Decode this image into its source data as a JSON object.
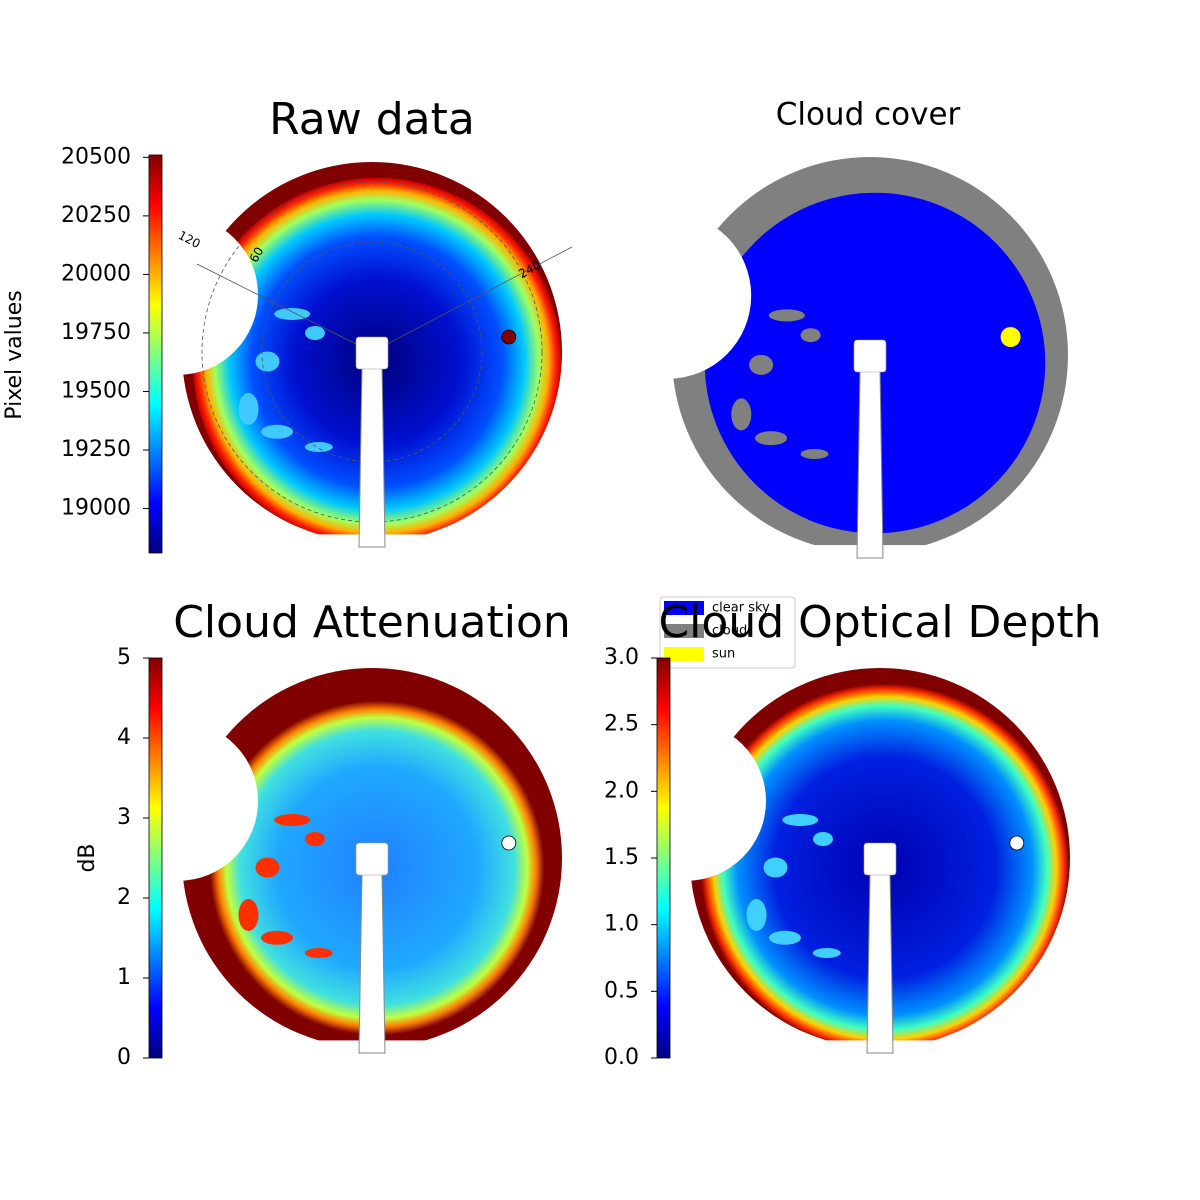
{
  "chart_data": [
    {
      "type": "image",
      "title": "Raw data",
      "colorbar": {
        "label": "Pixel values",
        "colormap": "jet",
        "ylim": [
          18810,
          20510
        ],
        "yticks": [
          19000,
          19250,
          19500,
          19750,
          20000,
          20250,
          20500
        ]
      },
      "annotations": [
        "120",
        "60",
        "240"
      ]
    },
    {
      "type": "image",
      "title": "Cloud cover",
      "legend": {
        "position": "upper left",
        "entries": [
          {
            "name": "clear sky",
            "color": "#0000ff"
          },
          {
            "name": "cloud",
            "color": "#808080"
          },
          {
            "name": "sun",
            "color": "#ffff00"
          }
        ]
      }
    },
    {
      "type": "image",
      "title": "Cloud Attenuation",
      "colorbar": {
        "label": "dB",
        "colormap": "jet",
        "ylim": [
          0,
          5
        ],
        "yticks": [
          0,
          1,
          2,
          3,
          4,
          5
        ]
      }
    },
    {
      "type": "image",
      "title": "Cloud Optical Depth",
      "colorbar": {
        "colormap": "jet",
        "ylim": [
          0,
          3
        ],
        "yticks": [
          {
            "value": 0,
            "label": "0.0"
          },
          {
            "value": 0.5,
            "label": "0.5"
          },
          {
            "value": 1,
            "label": "1.0"
          },
          {
            "value": 1.5,
            "label": "1.5"
          },
          {
            "value": 2,
            "label": "2.0"
          },
          {
            "value": 2.5,
            "label": "2.5"
          },
          {
            "value": 3,
            "label": "3.0"
          }
        ]
      }
    }
  ]
}
